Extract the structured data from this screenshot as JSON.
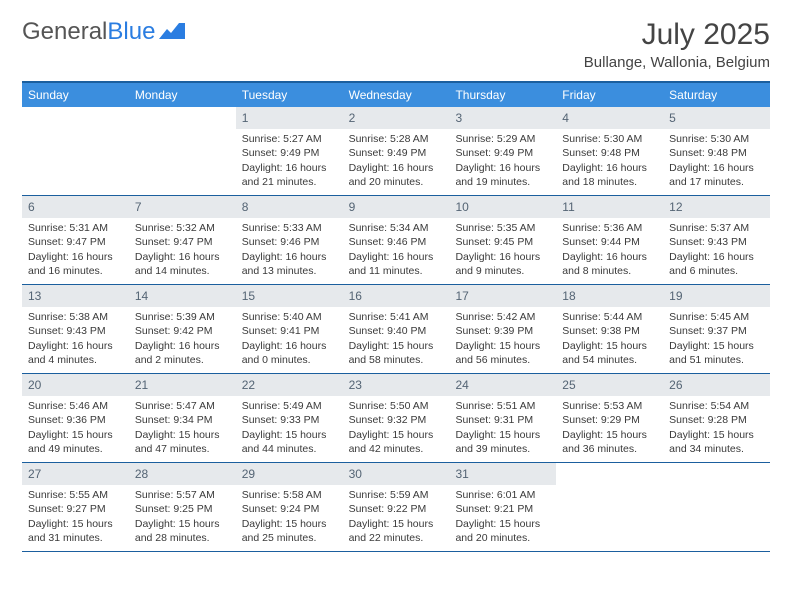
{
  "logo": {
    "text1": "General",
    "text2": "Blue"
  },
  "title": "July 2025",
  "location": "Bullange, Wallonia, Belgium",
  "day_names": [
    "Sunday",
    "Monday",
    "Tuesday",
    "Wednesday",
    "Thursday",
    "Friday",
    "Saturday"
  ],
  "colors": {
    "header_bg": "#3b8ede",
    "border": "#1b5f9e",
    "date_bg": "#e6e9ec",
    "date_text": "#546474",
    "body_text": "#3a3a3a"
  },
  "weeks": [
    [
      {
        "day": "",
        "sunrise": "",
        "sunset": "",
        "daylight": ""
      },
      {
        "day": "",
        "sunrise": "",
        "sunset": "",
        "daylight": ""
      },
      {
        "day": "1",
        "sunrise": "Sunrise: 5:27 AM",
        "sunset": "Sunset: 9:49 PM",
        "daylight": "Daylight: 16 hours and 21 minutes."
      },
      {
        "day": "2",
        "sunrise": "Sunrise: 5:28 AM",
        "sunset": "Sunset: 9:49 PM",
        "daylight": "Daylight: 16 hours and 20 minutes."
      },
      {
        "day": "3",
        "sunrise": "Sunrise: 5:29 AM",
        "sunset": "Sunset: 9:49 PM",
        "daylight": "Daylight: 16 hours and 19 minutes."
      },
      {
        "day": "4",
        "sunrise": "Sunrise: 5:30 AM",
        "sunset": "Sunset: 9:48 PM",
        "daylight": "Daylight: 16 hours and 18 minutes."
      },
      {
        "day": "5",
        "sunrise": "Sunrise: 5:30 AM",
        "sunset": "Sunset: 9:48 PM",
        "daylight": "Daylight: 16 hours and 17 minutes."
      }
    ],
    [
      {
        "day": "6",
        "sunrise": "Sunrise: 5:31 AM",
        "sunset": "Sunset: 9:47 PM",
        "daylight": "Daylight: 16 hours and 16 minutes."
      },
      {
        "day": "7",
        "sunrise": "Sunrise: 5:32 AM",
        "sunset": "Sunset: 9:47 PM",
        "daylight": "Daylight: 16 hours and 14 minutes."
      },
      {
        "day": "8",
        "sunrise": "Sunrise: 5:33 AM",
        "sunset": "Sunset: 9:46 PM",
        "daylight": "Daylight: 16 hours and 13 minutes."
      },
      {
        "day": "9",
        "sunrise": "Sunrise: 5:34 AM",
        "sunset": "Sunset: 9:46 PM",
        "daylight": "Daylight: 16 hours and 11 minutes."
      },
      {
        "day": "10",
        "sunrise": "Sunrise: 5:35 AM",
        "sunset": "Sunset: 9:45 PM",
        "daylight": "Daylight: 16 hours and 9 minutes."
      },
      {
        "day": "11",
        "sunrise": "Sunrise: 5:36 AM",
        "sunset": "Sunset: 9:44 PM",
        "daylight": "Daylight: 16 hours and 8 minutes."
      },
      {
        "day": "12",
        "sunrise": "Sunrise: 5:37 AM",
        "sunset": "Sunset: 9:43 PM",
        "daylight": "Daylight: 16 hours and 6 minutes."
      }
    ],
    [
      {
        "day": "13",
        "sunrise": "Sunrise: 5:38 AM",
        "sunset": "Sunset: 9:43 PM",
        "daylight": "Daylight: 16 hours and 4 minutes."
      },
      {
        "day": "14",
        "sunrise": "Sunrise: 5:39 AM",
        "sunset": "Sunset: 9:42 PM",
        "daylight": "Daylight: 16 hours and 2 minutes."
      },
      {
        "day": "15",
        "sunrise": "Sunrise: 5:40 AM",
        "sunset": "Sunset: 9:41 PM",
        "daylight": "Daylight: 16 hours and 0 minutes."
      },
      {
        "day": "16",
        "sunrise": "Sunrise: 5:41 AM",
        "sunset": "Sunset: 9:40 PM",
        "daylight": "Daylight: 15 hours and 58 minutes."
      },
      {
        "day": "17",
        "sunrise": "Sunrise: 5:42 AM",
        "sunset": "Sunset: 9:39 PM",
        "daylight": "Daylight: 15 hours and 56 minutes."
      },
      {
        "day": "18",
        "sunrise": "Sunrise: 5:44 AM",
        "sunset": "Sunset: 9:38 PM",
        "daylight": "Daylight: 15 hours and 54 minutes."
      },
      {
        "day": "19",
        "sunrise": "Sunrise: 5:45 AM",
        "sunset": "Sunset: 9:37 PM",
        "daylight": "Daylight: 15 hours and 51 minutes."
      }
    ],
    [
      {
        "day": "20",
        "sunrise": "Sunrise: 5:46 AM",
        "sunset": "Sunset: 9:36 PM",
        "daylight": "Daylight: 15 hours and 49 minutes."
      },
      {
        "day": "21",
        "sunrise": "Sunrise: 5:47 AM",
        "sunset": "Sunset: 9:34 PM",
        "daylight": "Daylight: 15 hours and 47 minutes."
      },
      {
        "day": "22",
        "sunrise": "Sunrise: 5:49 AM",
        "sunset": "Sunset: 9:33 PM",
        "daylight": "Daylight: 15 hours and 44 minutes."
      },
      {
        "day": "23",
        "sunrise": "Sunrise: 5:50 AM",
        "sunset": "Sunset: 9:32 PM",
        "daylight": "Daylight: 15 hours and 42 minutes."
      },
      {
        "day": "24",
        "sunrise": "Sunrise: 5:51 AM",
        "sunset": "Sunset: 9:31 PM",
        "daylight": "Daylight: 15 hours and 39 minutes."
      },
      {
        "day": "25",
        "sunrise": "Sunrise: 5:53 AM",
        "sunset": "Sunset: 9:29 PM",
        "daylight": "Daylight: 15 hours and 36 minutes."
      },
      {
        "day": "26",
        "sunrise": "Sunrise: 5:54 AM",
        "sunset": "Sunset: 9:28 PM",
        "daylight": "Daylight: 15 hours and 34 minutes."
      }
    ],
    [
      {
        "day": "27",
        "sunrise": "Sunrise: 5:55 AM",
        "sunset": "Sunset: 9:27 PM",
        "daylight": "Daylight: 15 hours and 31 minutes."
      },
      {
        "day": "28",
        "sunrise": "Sunrise: 5:57 AM",
        "sunset": "Sunset: 9:25 PM",
        "daylight": "Daylight: 15 hours and 28 minutes."
      },
      {
        "day": "29",
        "sunrise": "Sunrise: 5:58 AM",
        "sunset": "Sunset: 9:24 PM",
        "daylight": "Daylight: 15 hours and 25 minutes."
      },
      {
        "day": "30",
        "sunrise": "Sunrise: 5:59 AM",
        "sunset": "Sunset: 9:22 PM",
        "daylight": "Daylight: 15 hours and 22 minutes."
      },
      {
        "day": "31",
        "sunrise": "Sunrise: 6:01 AM",
        "sunset": "Sunset: 9:21 PM",
        "daylight": "Daylight: 15 hours and 20 minutes."
      },
      {
        "day": "",
        "sunrise": "",
        "sunset": "",
        "daylight": ""
      },
      {
        "day": "",
        "sunrise": "",
        "sunset": "",
        "daylight": ""
      }
    ]
  ]
}
